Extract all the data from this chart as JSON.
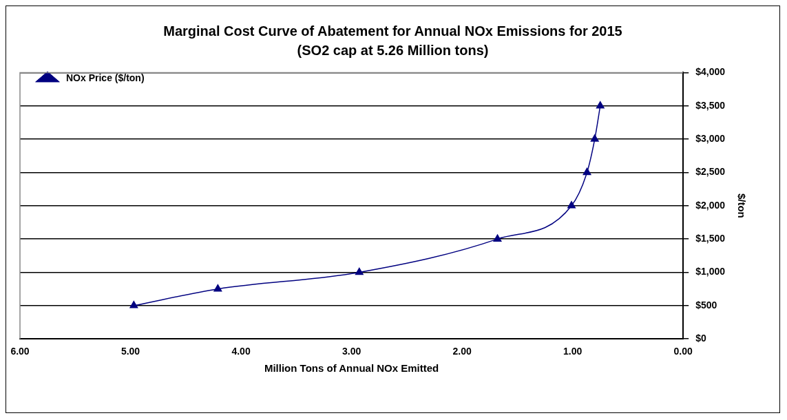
{
  "chart_data": {
    "type": "line",
    "title": "Marginal Cost Curve of Abatement for Annual NOx Emissions for 2015",
    "subtitle": "(SO2 cap at 5.26 Million tons)",
    "xlabel": "Million Tons of Annual NOx Emitted",
    "ylabel": "$/ton",
    "x": [
      4.97,
      4.21,
      2.93,
      1.68,
      1.01,
      0.87,
      0.8,
      0.75
    ],
    "series": [
      {
        "name": "NOx Price ($/ton)",
        "color": "#000080",
        "values": [
          500,
          750,
          1000,
          1500,
          2000,
          2500,
          3000,
          3500
        ]
      }
    ],
    "xlim": [
      6,
      0
    ],
    "xticks": [
      {
        "value": 6,
        "label": "6.00"
      },
      {
        "value": 5,
        "label": "5.00"
      },
      {
        "value": 4,
        "label": "4.00"
      },
      {
        "value": 3,
        "label": "3.00"
      },
      {
        "value": 2,
        "label": "2.00"
      },
      {
        "value": 1,
        "label": "1.00"
      },
      {
        "value": 0,
        "label": "0.00"
      }
    ],
    "ylim": [
      0,
      4000
    ],
    "yticks": [
      {
        "value": 0,
        "label": "$0"
      },
      {
        "value": 500,
        "label": "$500"
      },
      {
        "value": 1000,
        "label": "$1,000"
      },
      {
        "value": 1500,
        "label": "$1,500"
      },
      {
        "value": 2000,
        "label": "$2,000"
      },
      {
        "value": 2500,
        "label": "$2,500"
      },
      {
        "value": 3000,
        "label": "$3,000"
      },
      {
        "value": 3500,
        "label": "$3,500"
      },
      {
        "value": 4000,
        "label": "$4,000"
      }
    ],
    "grid": "y",
    "legend": "top left",
    "marker": "triangle",
    "line_style": "solid"
  }
}
